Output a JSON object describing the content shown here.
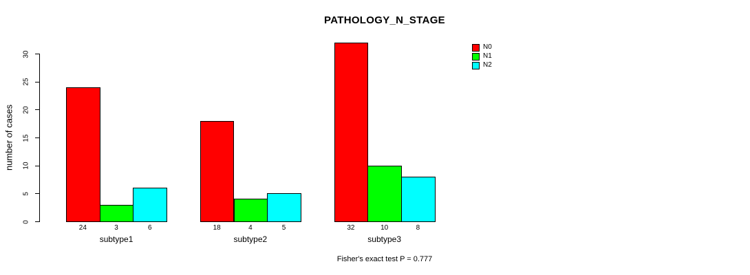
{
  "chart_data": {
    "type": "bar",
    "title": "PATHOLOGY_N_STAGE",
    "ylabel": "number of cases",
    "xlabel": "",
    "categories": [
      "subtype1",
      "subtype2",
      "subtype3"
    ],
    "series": [
      {
        "name": "N0",
        "color": "#ff0000",
        "values": [
          24,
          18,
          32
        ]
      },
      {
        "name": "N1",
        "color": "#00ff00",
        "values": [
          3,
          4,
          10
        ]
      },
      {
        "name": "N2",
        "color": "#00ffff",
        "values": [
          6,
          5,
          8
        ]
      }
    ],
    "bar_value_labels": [
      [
        "24",
        "3",
        "6"
      ],
      [
        "18",
        "4",
        "5"
      ],
      [
        "32",
        "10",
        "8"
      ]
    ],
    "yticks": [
      0,
      5,
      10,
      15,
      20,
      25,
      30
    ],
    "ylim": [
      0,
      32
    ],
    "grid": false,
    "legend_position": "top-right",
    "footnote": "Fisher's exact test P = 0.777"
  }
}
